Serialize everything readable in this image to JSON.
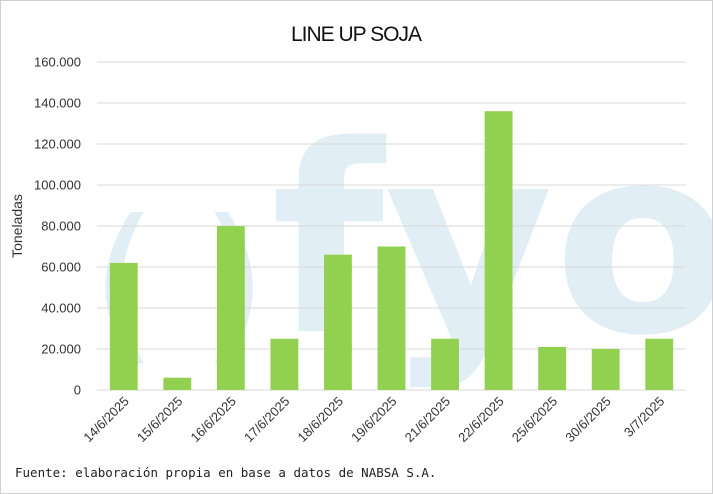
{
  "chart_data": {
    "type": "bar",
    "title": "LINE UP SOJA",
    "ylabel": "Toneladas",
    "xlabel": "",
    "categories": [
      "14/6/2025",
      "15/6/2025",
      "16/6/2025",
      "17/6/2025",
      "18/6/2025",
      "19/6/2025",
      "21/6/2025",
      "22/6/2025",
      "25/6/2025",
      "30/6/2025",
      "3/7/2025"
    ],
    "values": [
      62000,
      6000,
      80000,
      25000,
      66000,
      70000,
      25000,
      136000,
      21000,
      20000,
      25000
    ],
    "ylim": [
      0,
      160000
    ],
    "yticks": [
      "0",
      "20.000",
      "40.000",
      "60.000",
      "80.000",
      "100.000",
      "120.000",
      "140.000",
      "160.000"
    ],
    "grid": true,
    "legend": "none",
    "bar_color": "#92d050"
  },
  "source_note": "Fuente: elaboración propia en base a datos de NABSA S.A.",
  "watermark": {
    "text": "fyo",
    "color": "#dcecf4"
  }
}
